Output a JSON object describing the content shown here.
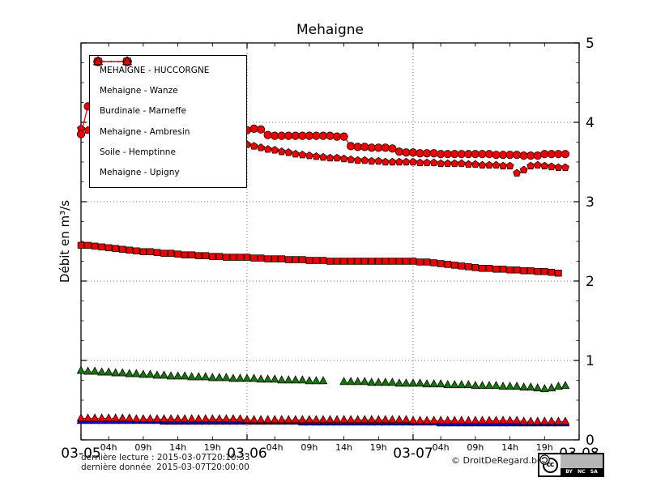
{
  "chart_data": {
    "type": "line",
    "title": "Mehaigne",
    "ylabel": "Débit en m³/s",
    "xlabel": "",
    "ylim": [
      0,
      5
    ],
    "x_span_hours": 72,
    "x_start_date": "03-05",
    "grid": "dotted horizontal lines at 1,2,3,4 and dotted vertical lines at day boundaries",
    "legend_position": "upper left",
    "y_ticks": [
      5,
      4,
      3,
      2,
      1,
      0
    ],
    "x_day_ticks": [
      {
        "label": "03-05",
        "t": 0
      },
      {
        "label": "03-06",
        "t": 24
      },
      {
        "label": "03-07",
        "t": 48
      },
      {
        "label": "03-08",
        "t": 72
      }
    ],
    "x_hour_labels": [
      "04h",
      "09h",
      "14h",
      "19h"
    ],
    "x_hour_offsets": [
      4,
      9,
      14,
      19
    ],
    "series": [
      {
        "name": "MEHAIGNE - HUCCORGNE",
        "color": "#ee0000",
        "marker": "circle",
        "line": "solid",
        "z": 6,
        "start_t": 0,
        "values": [
          3.85,
          4.2,
          4.05,
          3.98,
          3.95,
          3.92,
          3.9,
          3.88,
          3.85,
          3.82,
          3.8,
          3.78,
          3.76,
          3.74,
          3.72,
          3.7,
          3.68,
          3.66,
          3.65,
          3.64,
          3.63,
          3.62,
          3.61,
          3.58,
          3.9,
          3.92,
          3.91,
          3.84,
          3.83,
          3.83,
          3.83,
          3.83,
          3.83,
          3.83,
          3.83,
          3.83,
          3.83,
          3.82,
          3.82,
          3.7,
          3.69,
          3.69,
          3.68,
          3.68,
          3.68,
          3.67,
          3.63,
          3.62,
          3.62,
          3.61,
          3.61,
          3.61,
          3.6,
          3.6,
          3.6,
          3.6,
          3.6,
          3.6,
          3.6,
          3.6,
          3.59,
          3.59,
          3.59,
          3.59,
          3.58,
          3.58,
          3.58,
          3.6,
          3.6,
          3.6,
          3.6
        ]
      },
      {
        "name": "Mehaigne - Wanze",
        "color": "#ee0000",
        "marker": "pentagon",
        "line": "dashed",
        "z": 5,
        "start_t": 0,
        "values": [
          3.92,
          3.9,
          3.88,
          3.87,
          3.86,
          3.85,
          3.84,
          3.83,
          3.82,
          3.81,
          3.8,
          3.79,
          3.78,
          3.77,
          3.76,
          3.76,
          3.75,
          3.75,
          3.74,
          3.74,
          3.74,
          3.73,
          3.73,
          3.73,
          3.72,
          3.7,
          3.68,
          3.66,
          3.65,
          3.63,
          3.62,
          3.6,
          3.59,
          3.58,
          3.57,
          3.56,
          3.55,
          3.55,
          3.54,
          3.53,
          3.52,
          3.52,
          3.51,
          3.51,
          3.5,
          3.5,
          3.5,
          3.5,
          3.5,
          3.49,
          3.49,
          3.49,
          3.48,
          3.48,
          3.48,
          3.48,
          3.47,
          3.47,
          3.46,
          3.46,
          3.46,
          3.45,
          3.45,
          3.36,
          3.4,
          3.45,
          3.46,
          3.45,
          3.44,
          3.43,
          3.43
        ]
      },
      {
        "name": "Burdinale - Marneffe",
        "color": "#0000dd",
        "marker": "triangle",
        "line": "dotted",
        "z": 1,
        "start_t": 0,
        "values": [
          0.24,
          0.24,
          0.24,
          0.24,
          0.24,
          0.24,
          0.24,
          0.24,
          0.24,
          0.24,
          0.24,
          0.24,
          0.23,
          0.23,
          0.23,
          0.23,
          0.23,
          0.23,
          0.23,
          0.23,
          0.23,
          0.23,
          0.23,
          0.23,
          0.23,
          0.23,
          0.23,
          0.23,
          0.23,
          0.23,
          0.23,
          0.23,
          0.22,
          0.22,
          0.22,
          0.22,
          0.22,
          0.22,
          0.22,
          0.22,
          0.22,
          0.22,
          0.22,
          0.22,
          0.22,
          0.22,
          0.22,
          0.22,
          0.22,
          0.22,
          0.22,
          0.22,
          0.21,
          0.21,
          0.21,
          0.21,
          0.21,
          0.21,
          0.21,
          0.21,
          0.21,
          0.21,
          0.21,
          0.21,
          0.21,
          0.21,
          0.21,
          0.21,
          0.21,
          0.21,
          0.21
        ]
      },
      {
        "name": "Mehaigne - Ambresin",
        "color": "#ee0000",
        "marker": "square",
        "line": "dotted",
        "z": 4,
        "start_t": 0,
        "values": [
          2.45,
          2.45,
          2.44,
          2.43,
          2.42,
          2.41,
          2.4,
          2.39,
          2.38,
          2.37,
          2.37,
          2.36,
          2.35,
          2.35,
          2.34,
          2.33,
          2.33,
          2.32,
          2.32,
          2.31,
          2.31,
          2.3,
          2.3,
          2.3,
          2.3,
          2.29,
          2.29,
          2.28,
          2.28,
          2.28,
          2.27,
          2.27,
          2.27,
          2.26,
          2.26,
          2.26,
          2.25,
          2.25,
          2.25,
          2.25,
          2.25,
          2.25,
          2.25,
          2.25,
          2.25,
          2.25,
          2.25,
          2.25,
          2.25,
          2.24,
          2.24,
          2.23,
          2.22,
          2.21,
          2.2,
          2.19,
          2.18,
          2.17,
          2.16,
          2.16,
          2.15,
          2.15,
          2.14,
          2.14,
          2.13,
          2.13,
          2.12,
          2.12,
          2.11,
          2.1
        ]
      },
      {
        "name": "Soile - Hemptinne",
        "color": "#0e7a0e",
        "marker": "triangle",
        "line": "dotted",
        "z": 3,
        "start_t": 0,
        "values": [
          0.87,
          0.86,
          0.86,
          0.85,
          0.85,
          0.84,
          0.84,
          0.83,
          0.83,
          0.82,
          0.82,
          0.81,
          0.81,
          0.8,
          0.8,
          0.8,
          0.79,
          0.79,
          0.79,
          0.78,
          0.78,
          0.78,
          0.77,
          0.77,
          0.77,
          0.77,
          0.76,
          0.76,
          0.76,
          0.75,
          0.75,
          0.75,
          0.75,
          0.74,
          0.74,
          0.74,
          null,
          null,
          0.73,
          0.73,
          0.73,
          0.73,
          0.72,
          0.72,
          0.72,
          0.72,
          0.71,
          0.71,
          0.71,
          0.71,
          0.7,
          0.7,
          0.7,
          0.69,
          0.69,
          0.69,
          0.69,
          0.68,
          0.68,
          0.68,
          0.68,
          0.67,
          0.67,
          0.67,
          0.66,
          0.66,
          0.65,
          0.64,
          0.65,
          0.67,
          0.68
        ]
      },
      {
        "name": "Mehaigne - Upigny",
        "color": "#ee0000",
        "marker": "triangle",
        "line": "dashed",
        "z": 2,
        "start_t": 0,
        "values": [
          0.27,
          0.27,
          0.27,
          0.27,
          0.27,
          0.27,
          0.27,
          0.27,
          0.26,
          0.26,
          0.26,
          0.26,
          0.26,
          0.26,
          0.26,
          0.26,
          0.26,
          0.26,
          0.26,
          0.26,
          0.26,
          0.26,
          0.26,
          0.26,
          0.25,
          0.25,
          0.25,
          0.25,
          0.25,
          0.25,
          0.25,
          0.25,
          0.25,
          0.25,
          0.25,
          0.25,
          0.25,
          0.25,
          0.25,
          0.25,
          0.25,
          0.25,
          0.25,
          0.25,
          0.25,
          0.25,
          0.25,
          0.25,
          0.24,
          0.24,
          0.24,
          0.24,
          0.24,
          0.24,
          0.24,
          0.24,
          0.24,
          0.24,
          0.24,
          0.24,
          0.24,
          0.24,
          0.24,
          0.24,
          0.23,
          0.23,
          0.23,
          0.23,
          0.23,
          0.23,
          0.23
        ]
      }
    ]
  },
  "footer": {
    "last_read": "dernière lecture : 2015-03-07T20:10:33",
    "last_data": "dernière donnée  2015-03-07T20:00:00",
    "copyright": "© DroitDeRegard.be"
  },
  "cc_badge": {
    "cc_text": "cc",
    "by_label": "BY",
    "nc_label": "NC",
    "sa_label": "SA"
  }
}
